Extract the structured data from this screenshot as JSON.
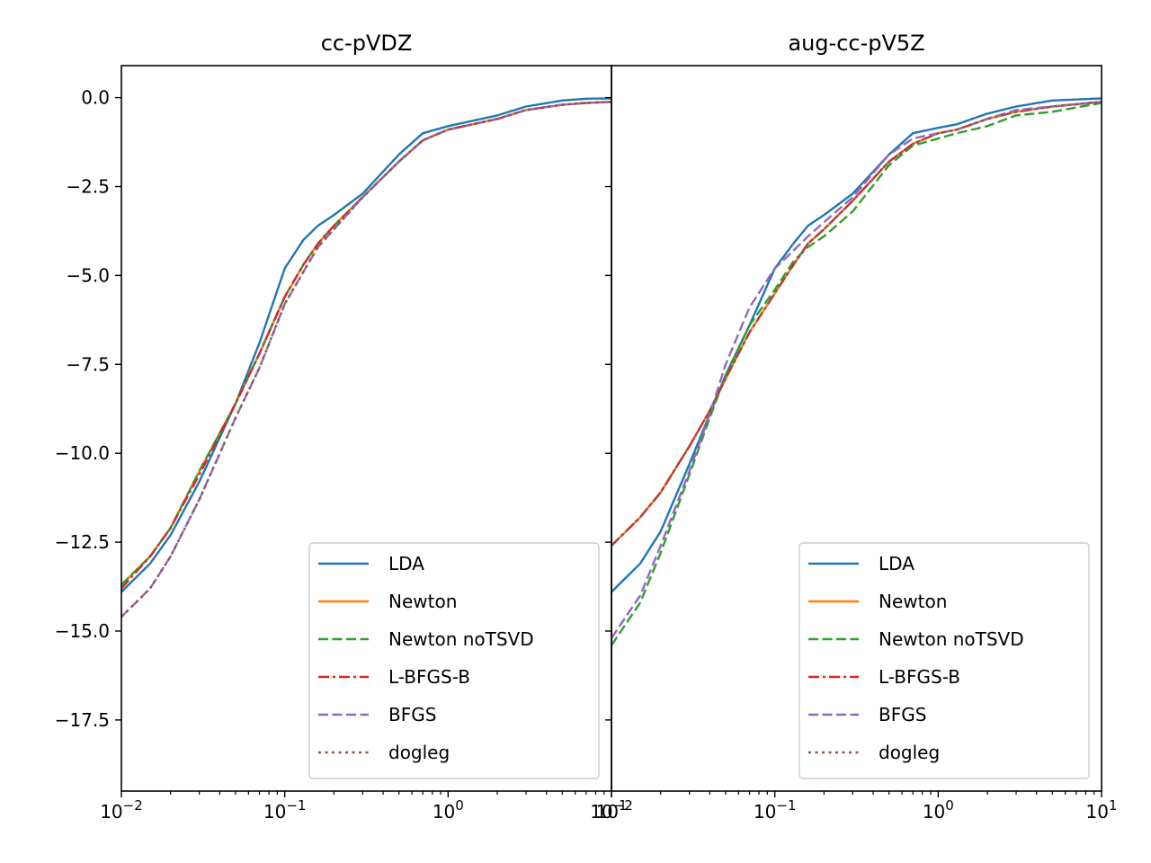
{
  "colors": {
    "LDA": "#1f77b4",
    "Newton": "#ff7f0e",
    "Newton noTSVD": "#2ca02c",
    "L-BFGS-B": "#d62728",
    "BFGS": "#9467bd",
    "dogleg": "#8c564b"
  },
  "chart_data": [
    {
      "type": "line",
      "title": "cc-pVDZ",
      "xscale": "log",
      "xlim": [
        0.01,
        10
      ],
      "ylim": [
        -19.5,
        0.9
      ],
      "xticks": [
        0.01,
        0.1,
        1,
        10
      ],
      "xtick_labels": [
        {
          "base": "10",
          "exp": "−2"
        },
        {
          "base": "10",
          "exp": "−1"
        },
        {
          "base": "10",
          "exp": "0"
        },
        {
          "base": "10",
          "exp": "1"
        }
      ],
      "yticks": [
        0,
        -2.5,
        -5,
        -7.5,
        -10,
        -12.5,
        -15,
        -17.5
      ],
      "ytick_labels": [
        "0.0",
        "−2.5",
        "−5.0",
        "−7.5",
        "−10.0",
        "−12.5",
        "−15.0",
        "−17.5"
      ],
      "grid": false,
      "legend": "lower right",
      "series": [
        {
          "name": "LDA",
          "style": "solid",
          "x": [
            0.01,
            0.015,
            0.02,
            0.03,
            0.05,
            0.07,
            0.1,
            0.13,
            0.16,
            0.2,
            0.3,
            0.5,
            0.7,
            1,
            2,
            3,
            5,
            7,
            10
          ],
          "y": [
            -13.9,
            -13.1,
            -12.3,
            -10.8,
            -8.6,
            -6.9,
            -4.8,
            -4.0,
            -3.6,
            -3.3,
            -2.7,
            -1.6,
            -1.0,
            -0.8,
            -0.5,
            -0.25,
            -0.08,
            -0.03,
            -0.02
          ]
        },
        {
          "name": "Newton",
          "style": "solid",
          "x": [
            0.01,
            0.015,
            0.02,
            0.03,
            0.05,
            0.07,
            0.1,
            0.13,
            0.16,
            0.2,
            0.3,
            0.5,
            0.7,
            1,
            2,
            3,
            5,
            7,
            10
          ],
          "y": [
            -13.7,
            -12.9,
            -12.1,
            -10.5,
            -8.6,
            -7.2,
            -5.6,
            -4.7,
            -4.1,
            -3.6,
            -2.8,
            -1.8,
            -1.2,
            -0.9,
            -0.6,
            -0.35,
            -0.2,
            -0.15,
            -0.12
          ]
        },
        {
          "name": "Newton noTSVD",
          "style": "dashed",
          "x": [
            0.01,
            0.015,
            0.02,
            0.03,
            0.05,
            0.07,
            0.1,
            0.13,
            0.16,
            0.2,
            0.3,
            0.5,
            0.7,
            1,
            2,
            3,
            5,
            7,
            10
          ],
          "y": [
            -13.7,
            -12.9,
            -12.1,
            -10.5,
            -8.6,
            -7.2,
            -5.6,
            -4.7,
            -4.1,
            -3.6,
            -2.8,
            -1.8,
            -1.2,
            -0.9,
            -0.6,
            -0.35,
            -0.2,
            -0.15,
            -0.12
          ]
        },
        {
          "name": "L-BFGS-B",
          "style": "dashdot",
          "x": [
            0.01,
            0.015,
            0.02,
            0.03,
            0.05,
            0.07,
            0.1,
            0.13,
            0.16,
            0.2,
            0.3,
            0.5,
            0.7,
            1,
            2,
            3,
            5,
            7,
            10
          ],
          "y": [
            -13.8,
            -12.9,
            -12.1,
            -10.6,
            -8.6,
            -7.2,
            -5.6,
            -4.7,
            -4.1,
            -3.6,
            -2.8,
            -1.8,
            -1.2,
            -0.9,
            -0.6,
            -0.35,
            -0.2,
            -0.15,
            -0.12
          ]
        },
        {
          "name": "BFGS",
          "style": "dashed",
          "x": [
            0.01,
            0.015,
            0.02,
            0.03,
            0.05,
            0.07,
            0.1,
            0.13,
            0.16,
            0.2,
            0.3,
            0.5,
            0.7,
            1,
            2,
            3,
            5,
            7,
            10
          ],
          "y": [
            -14.6,
            -13.8,
            -12.9,
            -11.3,
            -9.0,
            -7.6,
            -5.8,
            -4.9,
            -4.2,
            -3.7,
            -2.8,
            -1.8,
            -1.2,
            -0.9,
            -0.6,
            -0.35,
            -0.2,
            -0.15,
            -0.12
          ]
        },
        {
          "name": "dogleg",
          "style": "dotted",
          "x": [
            0.01,
            0.015,
            0.02,
            0.03,
            0.05,
            0.07,
            0.1,
            0.13,
            0.16,
            0.2,
            0.3,
            0.5,
            0.7,
            1,
            2,
            3,
            5,
            7,
            10
          ],
          "y": [
            -14.6,
            -13.8,
            -12.9,
            -11.3,
            -9.0,
            -7.6,
            -5.8,
            -4.9,
            -4.2,
            -3.7,
            -2.8,
            -1.8,
            -1.2,
            -0.9,
            -0.6,
            -0.35,
            -0.2,
            -0.15,
            -0.12
          ]
        }
      ]
    },
    {
      "type": "line",
      "title": "aug-cc-pV5Z",
      "xscale": "log",
      "xlim": [
        0.01,
        10
      ],
      "ylim": [
        -19.5,
        0.9
      ],
      "xticks": [
        0.01,
        0.1,
        1,
        10
      ],
      "xtick_labels": [
        {
          "base": "10",
          "exp": "−2"
        },
        {
          "base": "10",
          "exp": "−1"
        },
        {
          "base": "10",
          "exp": "0"
        },
        {
          "base": "10",
          "exp": "1"
        }
      ],
      "yticks": [
        0,
        -2.5,
        -5,
        -7.5,
        -10,
        -12.5,
        -15,
        -17.5
      ],
      "grid": false,
      "legend": "lower right",
      "series": [
        {
          "name": "LDA",
          "style": "solid",
          "x": [
            0.01,
            0.015,
            0.02,
            0.03,
            0.04,
            0.05,
            0.07,
            0.1,
            0.13,
            0.16,
            0.2,
            0.3,
            0.5,
            0.7,
            1,
            1.3,
            2,
            3,
            5,
            10
          ],
          "y": [
            -13.9,
            -13.1,
            -12.2,
            -10.3,
            -8.9,
            -7.8,
            -6.4,
            -4.8,
            -4.1,
            -3.6,
            -3.3,
            -2.7,
            -1.6,
            -1.0,
            -0.85,
            -0.75,
            -0.45,
            -0.25,
            -0.08,
            -0.02
          ]
        },
        {
          "name": "Newton",
          "style": "solid",
          "x": [
            0.01,
            0.015,
            0.02,
            0.03,
            0.04,
            0.05,
            0.07,
            0.1,
            0.13,
            0.16,
            0.2,
            0.3,
            0.5,
            0.7,
            1,
            1.3,
            2,
            3,
            5,
            10
          ],
          "y": [
            -12.6,
            -11.8,
            -11.1,
            -9.8,
            -8.8,
            -7.9,
            -6.6,
            -5.5,
            -4.7,
            -4.1,
            -3.7,
            -2.9,
            -1.8,
            -1.3,
            -1.0,
            -0.9,
            -0.6,
            -0.4,
            -0.25,
            -0.12
          ]
        },
        {
          "name": "Newton noTSVD",
          "style": "dashed",
          "x": [
            0.01,
            0.015,
            0.02,
            0.03,
            0.04,
            0.05,
            0.07,
            0.1,
            0.13,
            0.16,
            0.2,
            0.3,
            0.5,
            0.7,
            1,
            1.3,
            2,
            3,
            5,
            10
          ],
          "y": [
            -15.4,
            -14.2,
            -12.8,
            -10.6,
            -9.0,
            -7.8,
            -6.4,
            -5.4,
            -4.6,
            -4.2,
            -3.9,
            -3.2,
            -1.9,
            -1.35,
            -1.15,
            -1.0,
            -0.8,
            -0.5,
            -0.4,
            -0.15
          ]
        },
        {
          "name": "L-BFGS-B",
          "style": "dashdot",
          "x": [
            0.01,
            0.015,
            0.02,
            0.03,
            0.04,
            0.05,
            0.07,
            0.1,
            0.13,
            0.16,
            0.2,
            0.3,
            0.5,
            0.7,
            1,
            1.3,
            2,
            3,
            5,
            10
          ],
          "y": [
            -12.6,
            -11.8,
            -11.1,
            -9.8,
            -8.8,
            -7.9,
            -6.6,
            -5.5,
            -4.7,
            -4.1,
            -3.7,
            -2.9,
            -1.8,
            -1.3,
            -1.0,
            -0.9,
            -0.6,
            -0.4,
            -0.25,
            -0.12
          ]
        },
        {
          "name": "BFGS",
          "style": "dashed",
          "x": [
            0.01,
            0.015,
            0.02,
            0.03,
            0.04,
            0.05,
            0.07,
            0.1,
            0.13,
            0.16,
            0.2,
            0.3,
            0.5,
            0.7,
            1,
            1.3,
            2,
            3,
            5,
            10
          ],
          "y": [
            -15.2,
            -14.0,
            -12.6,
            -10.5,
            -8.9,
            -7.5,
            -5.9,
            -4.8,
            -4.3,
            -3.9,
            -3.5,
            -2.8,
            -1.6,
            -1.15,
            -1.0,
            -0.9,
            -0.6,
            -0.35,
            -0.25,
            -0.12
          ]
        },
        {
          "name": "dogleg",
          "style": "dotted",
          "x": [
            0.01,
            0.015,
            0.02,
            0.03,
            0.04,
            0.05,
            0.07,
            0.1,
            0.13,
            0.16,
            0.2,
            0.3,
            0.5,
            0.7,
            1,
            1.3,
            2,
            3,
            5,
            10
          ],
          "y": [
            -12.6,
            -11.8,
            -11.1,
            -9.8,
            -8.8,
            -7.9,
            -6.6,
            -5.5,
            -4.7,
            -4.1,
            -3.7,
            -2.9,
            -1.8,
            -1.3,
            -1.0,
            -0.9,
            -0.6,
            -0.4,
            -0.25,
            -0.12
          ]
        }
      ]
    }
  ]
}
